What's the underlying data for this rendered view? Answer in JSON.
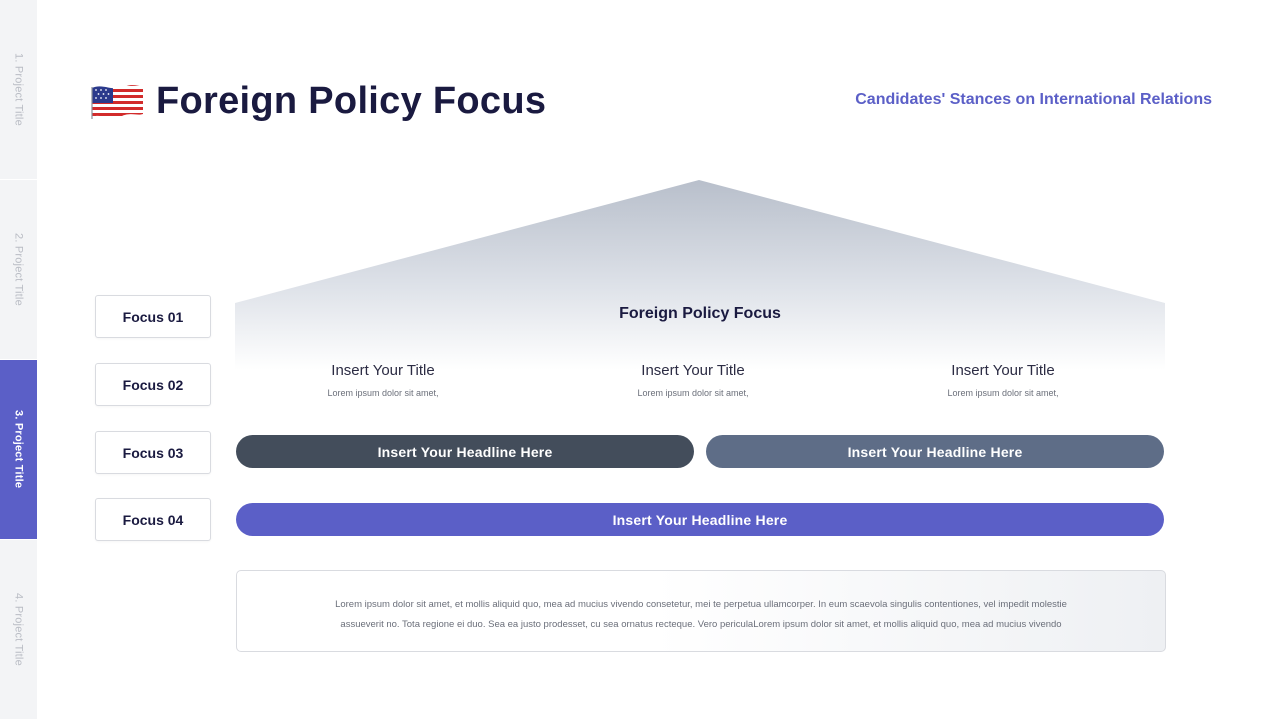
{
  "side_nav": {
    "tabs": [
      {
        "label": "1. Project Title",
        "active": false
      },
      {
        "label": "2. Project Title",
        "active": false
      },
      {
        "label": "3. Project Title",
        "active": true
      },
      {
        "label": "4. Project Title",
        "active": false
      }
    ]
  },
  "header": {
    "flag_icon": "us-flag-icon",
    "title": "Foreign Policy Focus",
    "subtitle": "Candidates' Stances on International Relations"
  },
  "focus_labels": [
    "Focus 01",
    "Focus 02",
    "Focus 03",
    "Focus 04"
  ],
  "roof": {
    "title": "Foreign Policy Focus",
    "columns": [
      {
        "title": "Insert Your Title",
        "text": "Lorem ipsum dolor sit amet,"
      },
      {
        "title": "Insert Your Title",
        "text": "Lorem ipsum dolor sit amet,"
      },
      {
        "title": "Insert Your Title",
        "text": "Lorem ipsum dolor sit amet,"
      }
    ]
  },
  "bars": [
    {
      "label": "Insert Your Headline Here",
      "color": "#434d5b"
    },
    {
      "label": "Insert Your Headline Here",
      "color": "#5e6d87"
    },
    {
      "label": "Insert Your Headline Here",
      "color": "#5b5fc7"
    }
  ],
  "description": {
    "line1": "Lorem ipsum dolor sit amet, et mollis aliquid quo, mea ad mucius vivendo consetetur, mei te perpetua ullamcorper. In eum scaevola singulis contentiones, vel impedit molestie",
    "line2": "assueverit no. Tota regione ei duo. Sea ea justo prodesset, cu sea ornatus recteque. Vero periculaLorem ipsum dolor sit amet, et mollis aliquid quo, mea ad mucius vivendo"
  },
  "colors": {
    "accent": "#5b5fc7",
    "dark_bar": "#434d5b",
    "slate_bar": "#5e6d87",
    "title_text": "#1a1a40"
  }
}
